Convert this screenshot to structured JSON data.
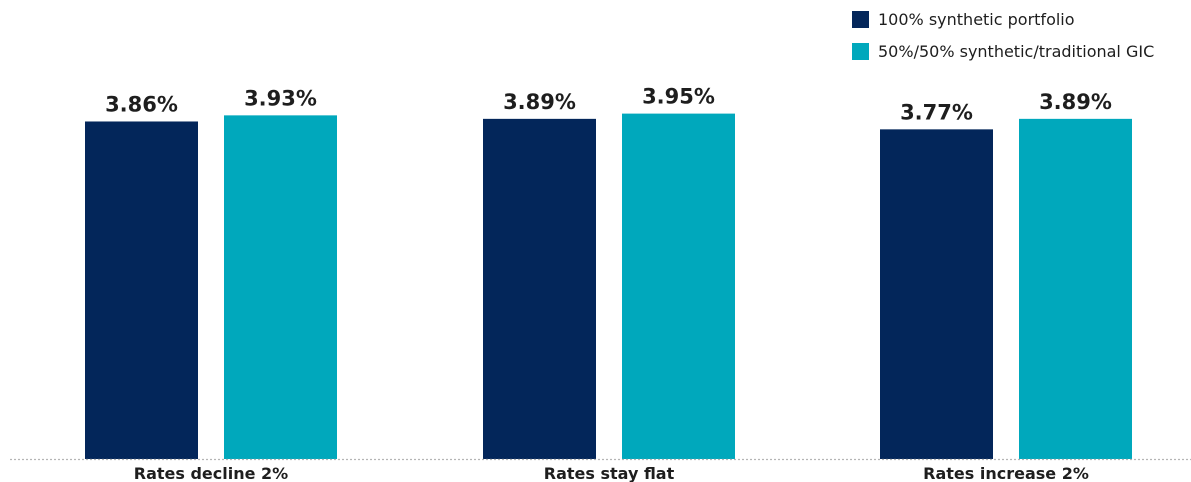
{
  "chart_data": {
    "type": "bar",
    "title": "",
    "xlabel": "",
    "ylabel": "",
    "categories": [
      "Rates decline 2%",
      "Rates stay flat",
      "Rates increase 2%"
    ],
    "series": [
      {
        "name": "100% synthetic portfolio",
        "values": [
          3.86,
          3.89,
          3.77
        ],
        "labels": [
          "3.86%",
          "3.89%",
          "3.77%"
        ],
        "color": "#03265a"
      },
      {
        "name": "50%/50% synthetic/traditional GIC",
        "values": [
          3.93,
          3.95,
          3.89
        ],
        "labels": [
          "3.93%",
          "3.95%",
          "3.89%"
        ],
        "color": "#00a8bc"
      }
    ],
    "ylim": [
      0,
      4.22
    ],
    "grid": false,
    "baseline": "dotted",
    "legend_position": "top-right",
    "colors": {
      "baseline": "#b5b5b5",
      "text": "#1e1e1e"
    }
  }
}
